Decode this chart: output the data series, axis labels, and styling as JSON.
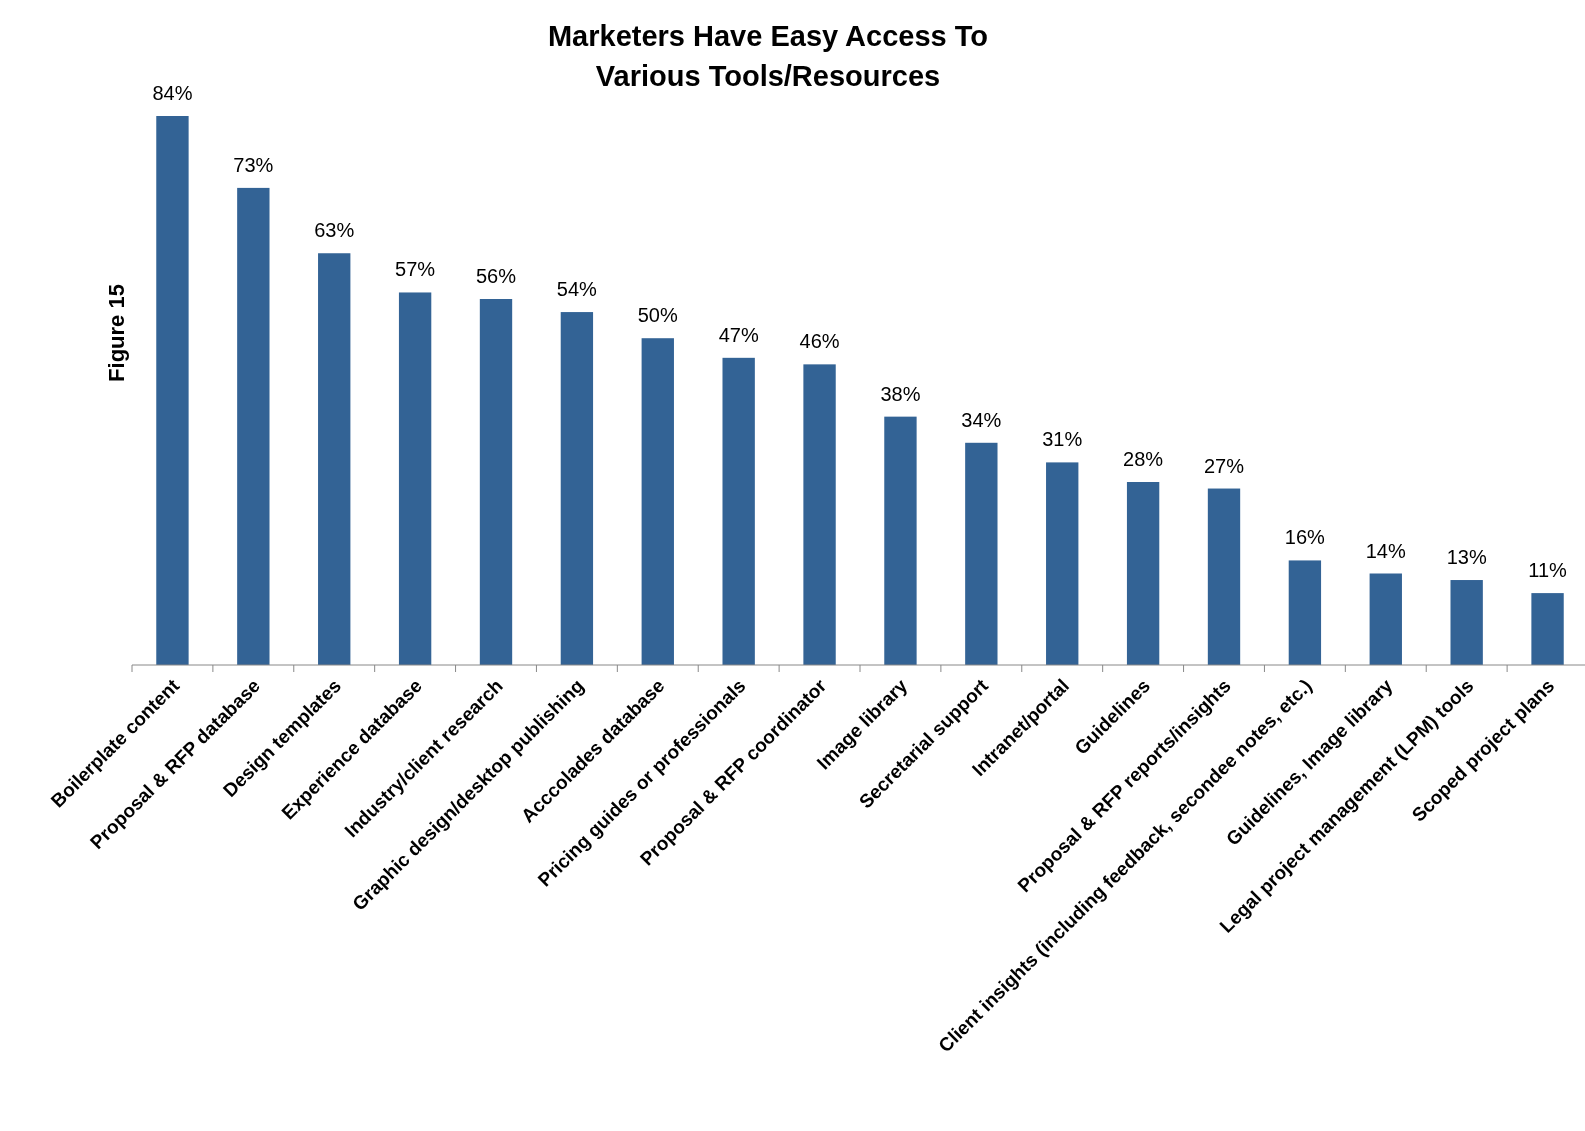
{
  "chart_data": {
    "type": "bar",
    "title": "Marketers Have Easy Access To\nVarious Tools/Resources",
    "ylabel": "Figure 15",
    "categories": [
      "Boilerplate content",
      "Proposal & RFP database",
      "Design templates",
      "Experience database",
      "Industry/client research",
      "Graphic design/desktop publishing",
      "Acccolades database",
      "Pricing guides or professionals",
      "Proposal & RFP coordinator",
      "Image library",
      "Secretarial support",
      "Intranet/portal",
      "Guidelines",
      "Proposal & RFP reports/insights",
      "Client insights (including feedback, secondee notes, etc.)",
      "Guidelines, Image library",
      "Legal project management (LPM) tools",
      "Scoped project plans"
    ],
    "values": [
      84,
      73,
      63,
      57,
      56,
      54,
      50,
      47,
      46,
      38,
      34,
      31,
      28,
      27,
      16,
      14,
      13,
      11
    ],
    "value_labels": [
      "84%",
      "73%",
      "63%",
      "57%",
      "56%",
      "54%",
      "50%",
      "47%",
      "46%",
      "38%",
      "34%",
      "31%",
      "28%",
      "27%",
      "16%",
      "14%",
      "13%",
      "11%"
    ],
    "color": "#336395"
  }
}
